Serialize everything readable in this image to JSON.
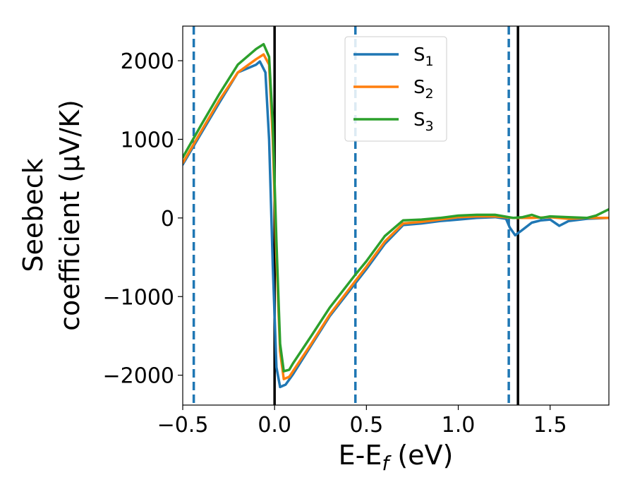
{
  "chart_data": {
    "type": "line",
    "xlabel": {
      "main": "E-E",
      "sub": "f",
      "rest": " (eV)"
    },
    "ylabel_lines": [
      "Seebeck",
      "coefficient  (μV/K)"
    ],
    "xlim": [
      -0.5,
      1.82
    ],
    "ylim": [
      -2380,
      2440
    ],
    "x_ticks": [
      -0.5,
      0.0,
      0.5,
      1.0,
      1.5
    ],
    "x_tick_labels": [
      "−0.5",
      "0.0",
      "0.5",
      "1.0",
      "1.5"
    ],
    "y_ticks": [
      2000,
      1000,
      0,
      -1000,
      -2000
    ],
    "y_tick_labels": [
      "2000",
      "1000",
      "0",
      "−1000",
      "−2000"
    ],
    "legend_position": "top-center",
    "vlines": [
      {
        "x": -0.44,
        "style": "dashed",
        "color": "#1f77b4"
      },
      {
        "x": 0.44,
        "style": "dashed",
        "color": "#1f77b4"
      },
      {
        "x": 1.275,
        "style": "dashed",
        "color": "#1f77b4"
      },
      {
        "x": 0.0,
        "style": "solid",
        "color": "#000000"
      },
      {
        "x": 1.325,
        "style": "solid",
        "color": "#000000"
      }
    ],
    "series": [
      {
        "name": "S",
        "sub": "1",
        "color": "#1f77b4",
        "points": [
          [
            -0.5,
            680
          ],
          [
            -0.4,
            1075
          ],
          [
            -0.3,
            1470
          ],
          [
            -0.2,
            1850
          ],
          [
            -0.1,
            1950
          ],
          [
            -0.08,
            1990
          ],
          [
            -0.05,
            1850
          ],
          [
            -0.03,
            1000
          ],
          [
            -0.01,
            -600
          ],
          [
            0.01,
            -1900
          ],
          [
            0.03,
            -2150
          ],
          [
            0.06,
            -2120
          ],
          [
            0.1,
            -1990
          ],
          [
            0.2,
            -1620
          ],
          [
            0.3,
            -1250
          ],
          [
            0.44,
            -830
          ],
          [
            0.5,
            -650
          ],
          [
            0.6,
            -330
          ],
          [
            0.7,
            -90
          ],
          [
            0.8,
            -70
          ],
          [
            0.9,
            -40
          ],
          [
            1.0,
            -20
          ],
          [
            1.1,
            0
          ],
          [
            1.2,
            10
          ],
          [
            1.26,
            -10
          ],
          [
            1.28,
            -120
          ],
          [
            1.31,
            -220
          ],
          [
            1.35,
            -150
          ],
          [
            1.4,
            -60
          ],
          [
            1.45,
            -30
          ],
          [
            1.5,
            -20
          ],
          [
            1.55,
            -100
          ],
          [
            1.6,
            -40
          ],
          [
            1.7,
            -10
          ],
          [
            1.82,
            0
          ]
        ]
      },
      {
        "name": "S",
        "sub": "2",
        "color": "#ff7f0e",
        "points": [
          [
            -0.5,
            700
          ],
          [
            -0.4,
            1100
          ],
          [
            -0.3,
            1500
          ],
          [
            -0.2,
            1850
          ],
          [
            -0.1,
            2020
          ],
          [
            -0.06,
            2080
          ],
          [
            -0.03,
            1950
          ],
          [
            -0.01,
            1000
          ],
          [
            0.01,
            -500
          ],
          [
            0.03,
            -1700
          ],
          [
            0.05,
            -2050
          ],
          [
            0.08,
            -2020
          ],
          [
            0.1,
            -1950
          ],
          [
            0.2,
            -1600
          ],
          [
            0.3,
            -1230
          ],
          [
            0.44,
            -800
          ],
          [
            0.5,
            -620
          ],
          [
            0.6,
            -300
          ],
          [
            0.7,
            -70
          ],
          [
            0.8,
            -50
          ],
          [
            0.9,
            -20
          ],
          [
            1.0,
            10
          ],
          [
            1.1,
            20
          ],
          [
            1.2,
            20
          ],
          [
            1.3,
            0
          ],
          [
            1.4,
            0
          ],
          [
            1.5,
            10
          ],
          [
            1.6,
            -10
          ],
          [
            1.7,
            0
          ],
          [
            1.82,
            0
          ]
        ]
      },
      {
        "name": "S",
        "sub": "3",
        "color": "#2ca02c",
        "points": [
          [
            -0.5,
            770
          ],
          [
            -0.4,
            1180
          ],
          [
            -0.3,
            1580
          ],
          [
            -0.2,
            1950
          ],
          [
            -0.1,
            2150
          ],
          [
            -0.06,
            2210
          ],
          [
            -0.03,
            2050
          ],
          [
            -0.01,
            1200
          ],
          [
            0.01,
            -300
          ],
          [
            0.03,
            -1600
          ],
          [
            0.05,
            -1950
          ],
          [
            0.08,
            -1930
          ],
          [
            0.1,
            -1850
          ],
          [
            0.2,
            -1500
          ],
          [
            0.3,
            -1140
          ],
          [
            0.44,
            -720
          ],
          [
            0.5,
            -550
          ],
          [
            0.6,
            -230
          ],
          [
            0.7,
            -30
          ],
          [
            0.8,
            -20
          ],
          [
            0.9,
            0
          ],
          [
            1.0,
            30
          ],
          [
            1.1,
            40
          ],
          [
            1.2,
            40
          ],
          [
            1.3,
            0
          ],
          [
            1.35,
            10
          ],
          [
            1.4,
            40
          ],
          [
            1.45,
            0
          ],
          [
            1.5,
            20
          ],
          [
            1.6,
            10
          ],
          [
            1.7,
            0
          ],
          [
            1.75,
            30
          ],
          [
            1.82,
            110
          ]
        ]
      }
    ]
  }
}
